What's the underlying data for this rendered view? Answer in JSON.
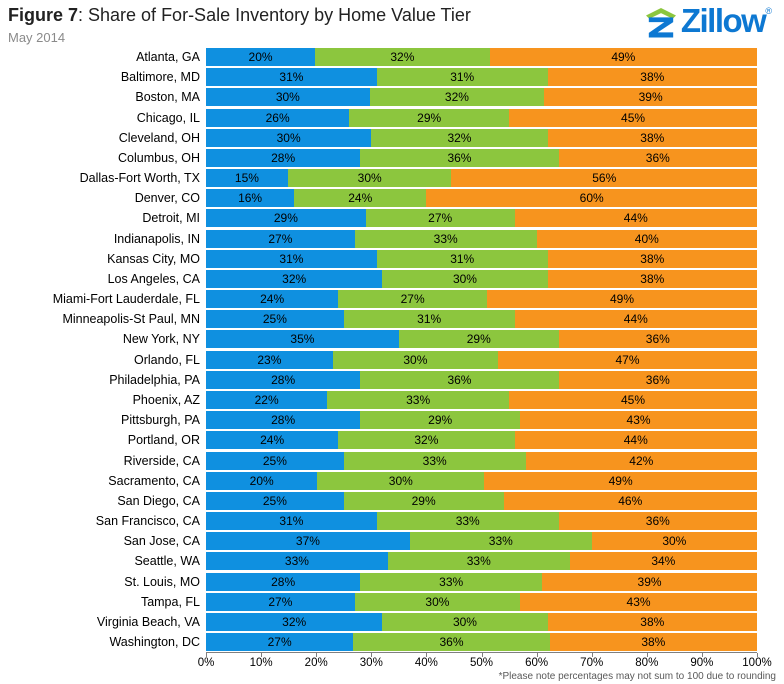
{
  "header": {
    "title_bold": "Figure 7",
    "title_rest": ": Share of For-Sale Inventory by Home Value Tier",
    "subtitle": "May 2014",
    "logo_text": "Zillow",
    "logo_reg": "®"
  },
  "chart_data": {
    "type": "bar",
    "orientation": "horizontal-stacked",
    "title": "Figure 7: Share of For-Sale Inventory by Home Value Tier",
    "subtitle": "May 2014",
    "value_suffix": "%",
    "xlim": [
      0,
      100
    ],
    "x_ticks": [
      "0%",
      "10%",
      "20%",
      "30%",
      "40%",
      "50%",
      "60%",
      "70%",
      "80%",
      "90%",
      "100%"
    ],
    "categories": [
      "Atlanta, GA",
      "Baltimore, MD",
      "Boston, MA",
      "Chicago, IL",
      "Cleveland, OH",
      "Columbus, OH",
      "Dallas-Fort Worth, TX",
      "Denver, CO",
      "Detroit, MI",
      "Indianapolis, IN",
      "Kansas City, MO",
      "Los Angeles, CA",
      "Miami-Fort Lauderdale, FL",
      "Minneapolis-St Paul, MN",
      "New York, NY",
      "Orlando, FL",
      "Philadelphia, PA",
      "Phoenix, AZ",
      "Pittsburgh, PA",
      "Portland, OR",
      "Riverside, CA",
      "Sacramento, CA",
      "San Diego, CA",
      "San Francisco, CA",
      "San Jose, CA",
      "Seattle, WA",
      "St. Louis, MO",
      "Tampa, FL",
      "Virginia Beach, VA",
      "Washington, DC"
    ],
    "series": [
      {
        "name": "blue",
        "color": "#0f90e0",
        "values": [
          20,
          31,
          30,
          26,
          30,
          28,
          15,
          16,
          29,
          27,
          31,
          32,
          24,
          25,
          35,
          23,
          28,
          22,
          28,
          24,
          25,
          20,
          25,
          31,
          37,
          33,
          28,
          27,
          32,
          27
        ]
      },
      {
        "name": "green",
        "color": "#8cc63e",
        "values": [
          32,
          31,
          32,
          29,
          32,
          36,
          30,
          24,
          27,
          33,
          31,
          30,
          27,
          31,
          29,
          30,
          36,
          33,
          29,
          32,
          33,
          30,
          29,
          33,
          33,
          33,
          33,
          30,
          30,
          36
        ]
      },
      {
        "name": "orange",
        "color": "#f7941e",
        "values": [
          49,
          38,
          39,
          45,
          38,
          36,
          56,
          60,
          44,
          40,
          38,
          38,
          49,
          44,
          36,
          47,
          36,
          45,
          43,
          44,
          42,
          49,
          46,
          36,
          30,
          34,
          39,
          43,
          38,
          38
        ]
      }
    ],
    "footnote": "*Please note percentages may not sum to 100 due to rounding"
  }
}
